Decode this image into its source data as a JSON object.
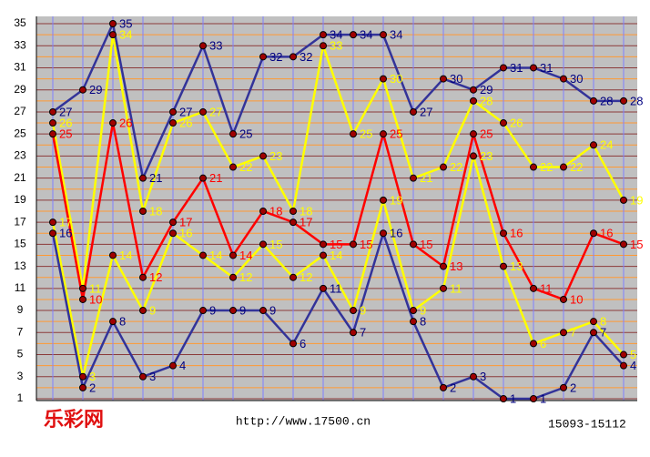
{
  "chart_data": {
    "type": "line",
    "ylim": [
      1,
      35
    ],
    "yticks": [
      1,
      3,
      5,
      7,
      9,
      11,
      13,
      15,
      17,
      19,
      21,
      23,
      25,
      27,
      29,
      31,
      33,
      35
    ],
    "grid": true,
    "series": [
      {
        "color": "#333399",
        "label_color": "#000080",
        "values": [
          27,
          29,
          35,
          21,
          27,
          33,
          25,
          32,
          32,
          34,
          34,
          34,
          27,
          30,
          29,
          31,
          31,
          30,
          28,
          28
        ]
      },
      {
        "color": "#ffff00",
        "label_color": "#ffff00",
        "values": [
          26,
          11,
          34,
          18,
          26,
          27,
          22,
          23,
          18,
          33,
          25,
          30,
          21,
          22,
          28,
          26,
          22,
          22,
          24,
          19
        ]
      },
      {
        "color": "#ff0000",
        "label_color": "#ff0000",
        "values": [
          25,
          10,
          26,
          12,
          17,
          21,
          14,
          18,
          17,
          15,
          15,
          25,
          15,
          13,
          25,
          16,
          11,
          10,
          16,
          15
        ]
      },
      {
        "color": "#ffff00",
        "label_color": "#ffff00",
        "values": [
          17,
          3,
          14,
          9,
          16,
          14,
          12,
          15,
          12,
          14,
          9,
          19,
          9,
          11,
          23,
          13,
          6,
          7,
          8,
          5
        ]
      },
      {
        "color": "#333399",
        "label_color": "#000080",
        "values": [
          16,
          2,
          8,
          3,
          4,
          9,
          9,
          9,
          6,
          11,
          7,
          16,
          8,
          2,
          3,
          1,
          1,
          2,
          7,
          4
        ]
      }
    ],
    "logo": "乐彩网",
    "url": "http://www.17500.cn",
    "period_range": "15093-15112"
  }
}
